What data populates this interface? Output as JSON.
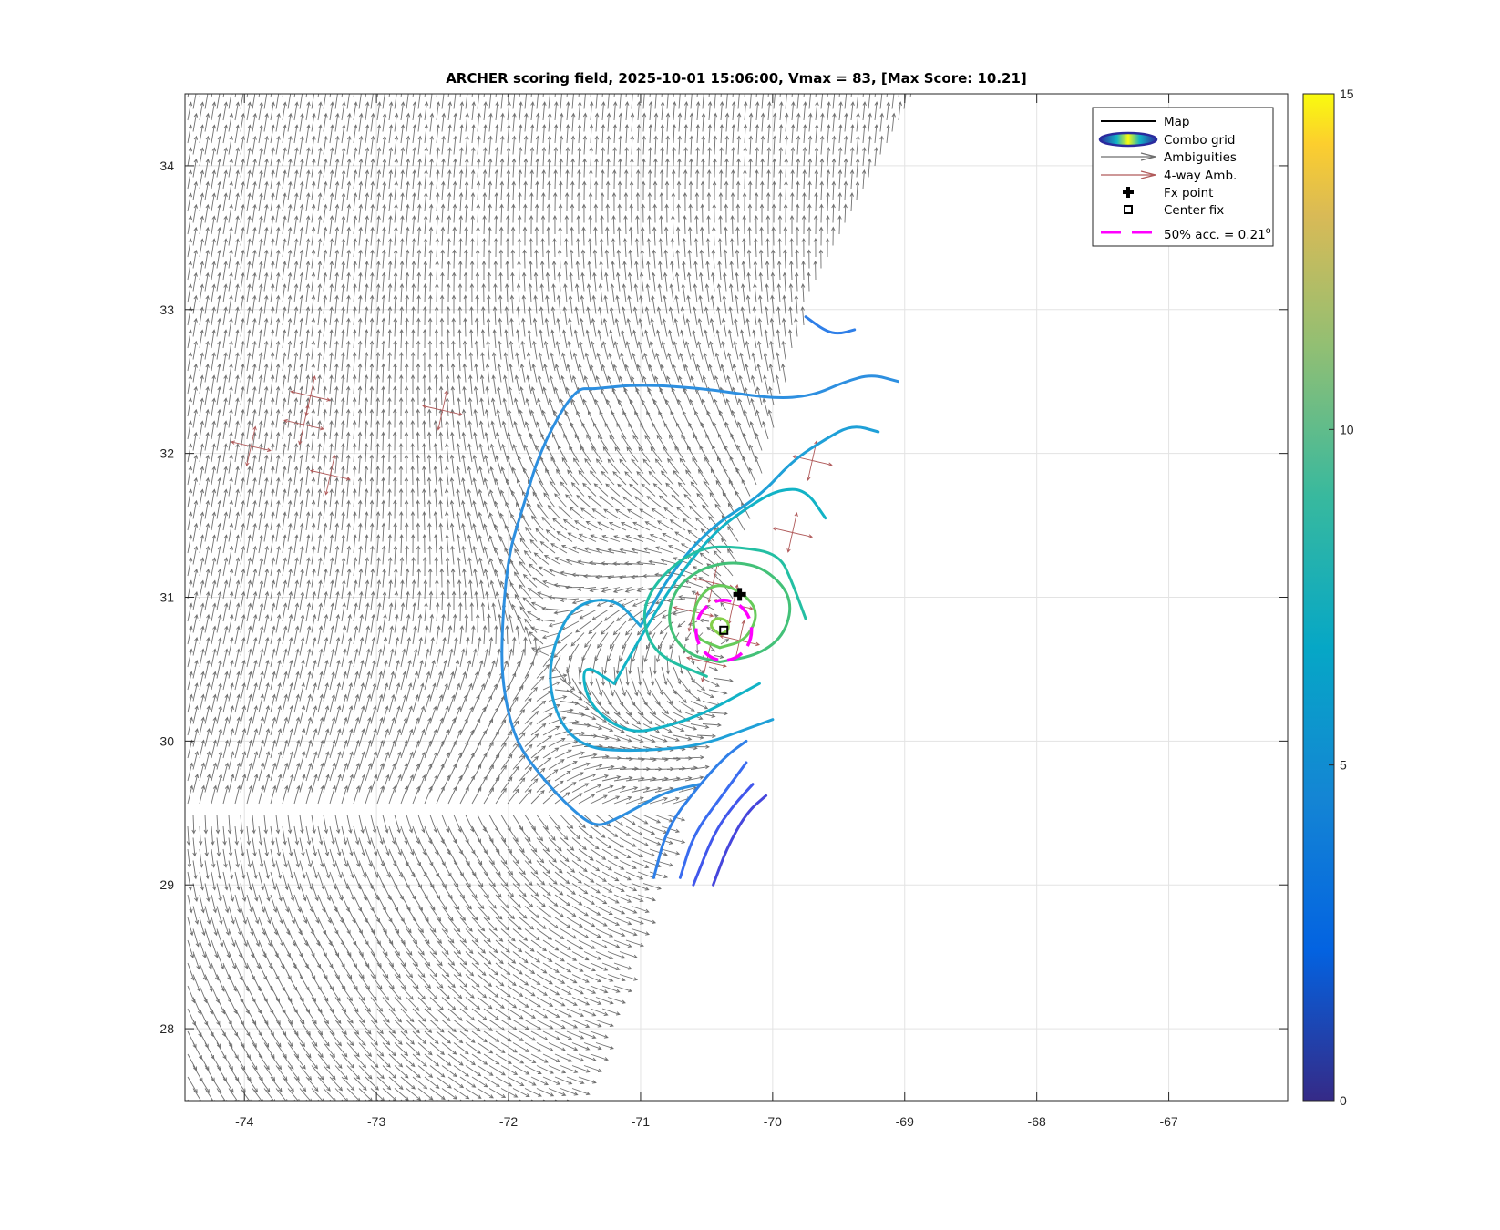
{
  "chart_data": {
    "type": "contour",
    "title": "ARCHER scoring field, 2025-10-01 15:06:00, Vmax = 83, [Max Score: 10.21]",
    "xlabel": "",
    "ylabel": "",
    "xlim": [
      -74.45,
      -66.1
    ],
    "ylim": [
      27.5,
      34.5
    ],
    "x_ticks": [
      -74,
      -73,
      -72,
      -71,
      -70,
      -69,
      -68,
      -67
    ],
    "x_tick_labels": [
      "-74",
      "-73",
      "-72",
      "-71",
      "-70",
      "-69",
      "-68",
      "-67"
    ],
    "y_ticks": [
      28,
      29,
      30,
      31,
      32,
      33,
      34
    ],
    "y_tick_labels": [
      "28",
      "29",
      "30",
      "31",
      "32",
      "33",
      "34"
    ],
    "grid": true,
    "legend_placement": "top-right",
    "legend": [
      {
        "label": "Map",
        "symbol": "line",
        "color": "#000000"
      },
      {
        "label": "Combo grid",
        "symbol": "contour",
        "color": "#2a2a9e"
      },
      {
        "label": "Ambiguities",
        "symbol": "arrow",
        "color": "#6e6e6e"
      },
      {
        "label": "4-way Amb.",
        "symbol": "arrow",
        "color": "#b05a5a"
      },
      {
        "label": "Fx point",
        "symbol": "plus",
        "color": "#000000"
      },
      {
        "label": "Center fix",
        "symbol": "square",
        "color": "#000000"
      },
      {
        "label": "50% acc. = 0.21",
        "superscript": "o",
        "symbol": "dashed",
        "color": "#ff00ff"
      }
    ],
    "colorbar": {
      "min": 0,
      "max": 15,
      "ticks": [
        0,
        5,
        10,
        15
      ],
      "tick_labels": [
        "0",
        "5",
        "10",
        "15"
      ],
      "colormap": "parula"
    },
    "fx_point": {
      "lon": -70.25,
      "lat": 31.02
    },
    "center_fix": {
      "lon": -70.37,
      "lat": 30.77
    },
    "accuracy_circle": {
      "lon": -70.37,
      "lat": 30.77,
      "radius_deg": 0.21,
      "color": "#ff00ff"
    },
    "storm_center": {
      "lon": -70.45,
      "lat": 30.72
    },
    "swath_edges": {
      "left_lon_at_top": -74.45,
      "right_edge": [
        [
          -68.85,
          34.5
        ],
        [
          -69.7,
          33.0
        ],
        [
          -70.15,
          31.5
        ],
        [
          -70.5,
          30.0
        ],
        [
          -70.9,
          29.0
        ],
        [
          -71.45,
          27.5
        ]
      ]
    },
    "contours": [
      {
        "level": 6.0,
        "color": "#2d8fe0",
        "points": [
          [
            -71.35,
            32.45
          ],
          [
            -71.5,
            32.45
          ],
          [
            -71.75,
            32.05
          ],
          [
            -71.9,
            31.6
          ],
          [
            -72.0,
            31.3
          ],
          [
            -72.05,
            30.8
          ],
          [
            -72.05,
            30.4
          ],
          [
            -71.95,
            30.0
          ],
          [
            -71.75,
            29.75
          ],
          [
            -71.55,
            29.55
          ],
          [
            -71.35,
            29.4
          ],
          [
            -71.2,
            29.45
          ],
          [
            -71.0,
            29.55
          ],
          [
            -70.8,
            29.65
          ],
          [
            -70.55,
            29.7
          ]
        ]
      },
      {
        "level": 6.0,
        "color": "#2d8fe0",
        "points": [
          [
            -71.35,
            32.45
          ],
          [
            -71.0,
            32.48
          ],
          [
            -70.5,
            32.45
          ],
          [
            -70.0,
            32.38
          ],
          [
            -69.7,
            32.4
          ],
          [
            -69.45,
            32.5
          ],
          [
            -69.25,
            32.55
          ],
          [
            -69.05,
            32.5
          ]
        ]
      },
      {
        "level": 6.5,
        "color": "#1fa0d8",
        "points": [
          [
            -71.0,
            30.8
          ],
          [
            -71.2,
            31.0
          ],
          [
            -71.5,
            30.95
          ],
          [
            -71.65,
            30.7
          ],
          [
            -71.7,
            30.4
          ],
          [
            -71.6,
            30.1
          ],
          [
            -71.4,
            29.95
          ],
          [
            -71.1,
            29.93
          ],
          [
            -70.7,
            29.95
          ],
          [
            -70.45,
            30.0
          ],
          [
            -70.3,
            30.05
          ],
          [
            -70.0,
            30.15
          ]
        ]
      },
      {
        "level": 6.5,
        "color": "#1fa0d8",
        "points": [
          [
            -71.0,
            30.8
          ],
          [
            -70.75,
            31.2
          ],
          [
            -70.45,
            31.5
          ],
          [
            -70.1,
            31.7
          ],
          [
            -69.85,
            31.95
          ],
          [
            -69.6,
            32.1
          ],
          [
            -69.4,
            32.2
          ],
          [
            -69.2,
            32.15
          ]
        ]
      },
      {
        "level": 7.0,
        "color": "#12b3c6",
        "points": [
          [
            -71.2,
            30.4
          ],
          [
            -71.45,
            30.55
          ],
          [
            -71.4,
            30.25
          ],
          [
            -71.1,
            30.05
          ],
          [
            -70.8,
            30.1
          ],
          [
            -70.5,
            30.2
          ],
          [
            -70.2,
            30.35
          ],
          [
            -70.1,
            30.4
          ]
        ]
      },
      {
        "level": 7.0,
        "color": "#12b3c6",
        "points": [
          [
            -71.2,
            30.4
          ],
          [
            -70.95,
            30.8
          ],
          [
            -70.75,
            31.1
          ],
          [
            -70.45,
            31.45
          ],
          [
            -70.15,
            31.65
          ],
          [
            -69.95,
            31.75
          ],
          [
            -69.75,
            31.75
          ],
          [
            -69.6,
            31.55
          ]
        ]
      },
      {
        "level": 8.0,
        "color": "#23bfa3",
        "points": [
          [
            -70.5,
            30.45
          ],
          [
            -70.9,
            30.6
          ],
          [
            -71.0,
            30.9
          ],
          [
            -70.85,
            31.15
          ],
          [
            -70.55,
            31.35
          ],
          [
            -70.25,
            31.35
          ],
          [
            -69.95,
            31.3
          ],
          [
            -69.85,
            31.1
          ],
          [
            -69.75,
            30.85
          ]
        ]
      },
      {
        "level": 9.0,
        "color": "#43c178",
        "points": [
          [
            -70.4,
            30.55
          ],
          [
            -70.65,
            30.6
          ],
          [
            -70.8,
            30.8
          ],
          [
            -70.75,
            31.05
          ],
          [
            -70.55,
            31.2
          ],
          [
            -70.3,
            31.25
          ],
          [
            -70.05,
            31.2
          ],
          [
            -69.85,
            31.0
          ],
          [
            -69.9,
            30.75
          ],
          [
            -70.1,
            30.6
          ],
          [
            -70.4,
            30.55
          ]
        ]
      },
      {
        "level": 9.8,
        "color": "#66cb5a",
        "points": [
          [
            -70.4,
            30.65
          ],
          [
            -70.6,
            30.72
          ],
          [
            -70.6,
            30.95
          ],
          [
            -70.45,
            31.1
          ],
          [
            -70.25,
            31.05
          ],
          [
            -70.1,
            30.9
          ],
          [
            -70.2,
            30.7
          ],
          [
            -70.4,
            30.65
          ]
        ]
      },
      {
        "level": 10.1,
        "color": "#84cf4a",
        "points": [
          [
            -70.4,
            30.74
          ],
          [
            -70.48,
            30.8
          ],
          [
            -70.43,
            30.86
          ],
          [
            -70.34,
            30.84
          ],
          [
            -70.33,
            30.77
          ],
          [
            -70.4,
            30.74
          ]
        ]
      },
      {
        "level": 5.0,
        "color": "#2f7fe8",
        "points": [
          [
            -70.9,
            29.05
          ],
          [
            -70.8,
            29.4
          ],
          [
            -70.55,
            29.7
          ],
          [
            -70.35,
            29.9
          ],
          [
            -70.2,
            30.0
          ]
        ]
      },
      {
        "level": 4.5,
        "color": "#3a6cf0",
        "points": [
          [
            -70.7,
            29.05
          ],
          [
            -70.6,
            29.35
          ],
          [
            -70.4,
            29.6
          ],
          [
            -70.2,
            29.85
          ]
        ]
      },
      {
        "level": 4.0,
        "color": "#4157ec",
        "points": [
          [
            -70.6,
            29.0
          ],
          [
            -70.45,
            29.35
          ],
          [
            -70.3,
            29.55
          ],
          [
            -70.15,
            29.7
          ]
        ]
      },
      {
        "level": 3.5,
        "color": "#4646dc",
        "points": [
          [
            -70.45,
            29.0
          ],
          [
            -70.35,
            29.25
          ],
          [
            -70.2,
            29.5
          ],
          [
            -70.05,
            29.62
          ]
        ]
      },
      {
        "level": 5.5,
        "color": "#2f7fe8",
        "points": [
          [
            -69.75,
            32.95
          ],
          [
            -69.6,
            32.85
          ],
          [
            -69.5,
            32.83
          ],
          [
            -69.38,
            32.86
          ]
        ]
      }
    ]
  }
}
